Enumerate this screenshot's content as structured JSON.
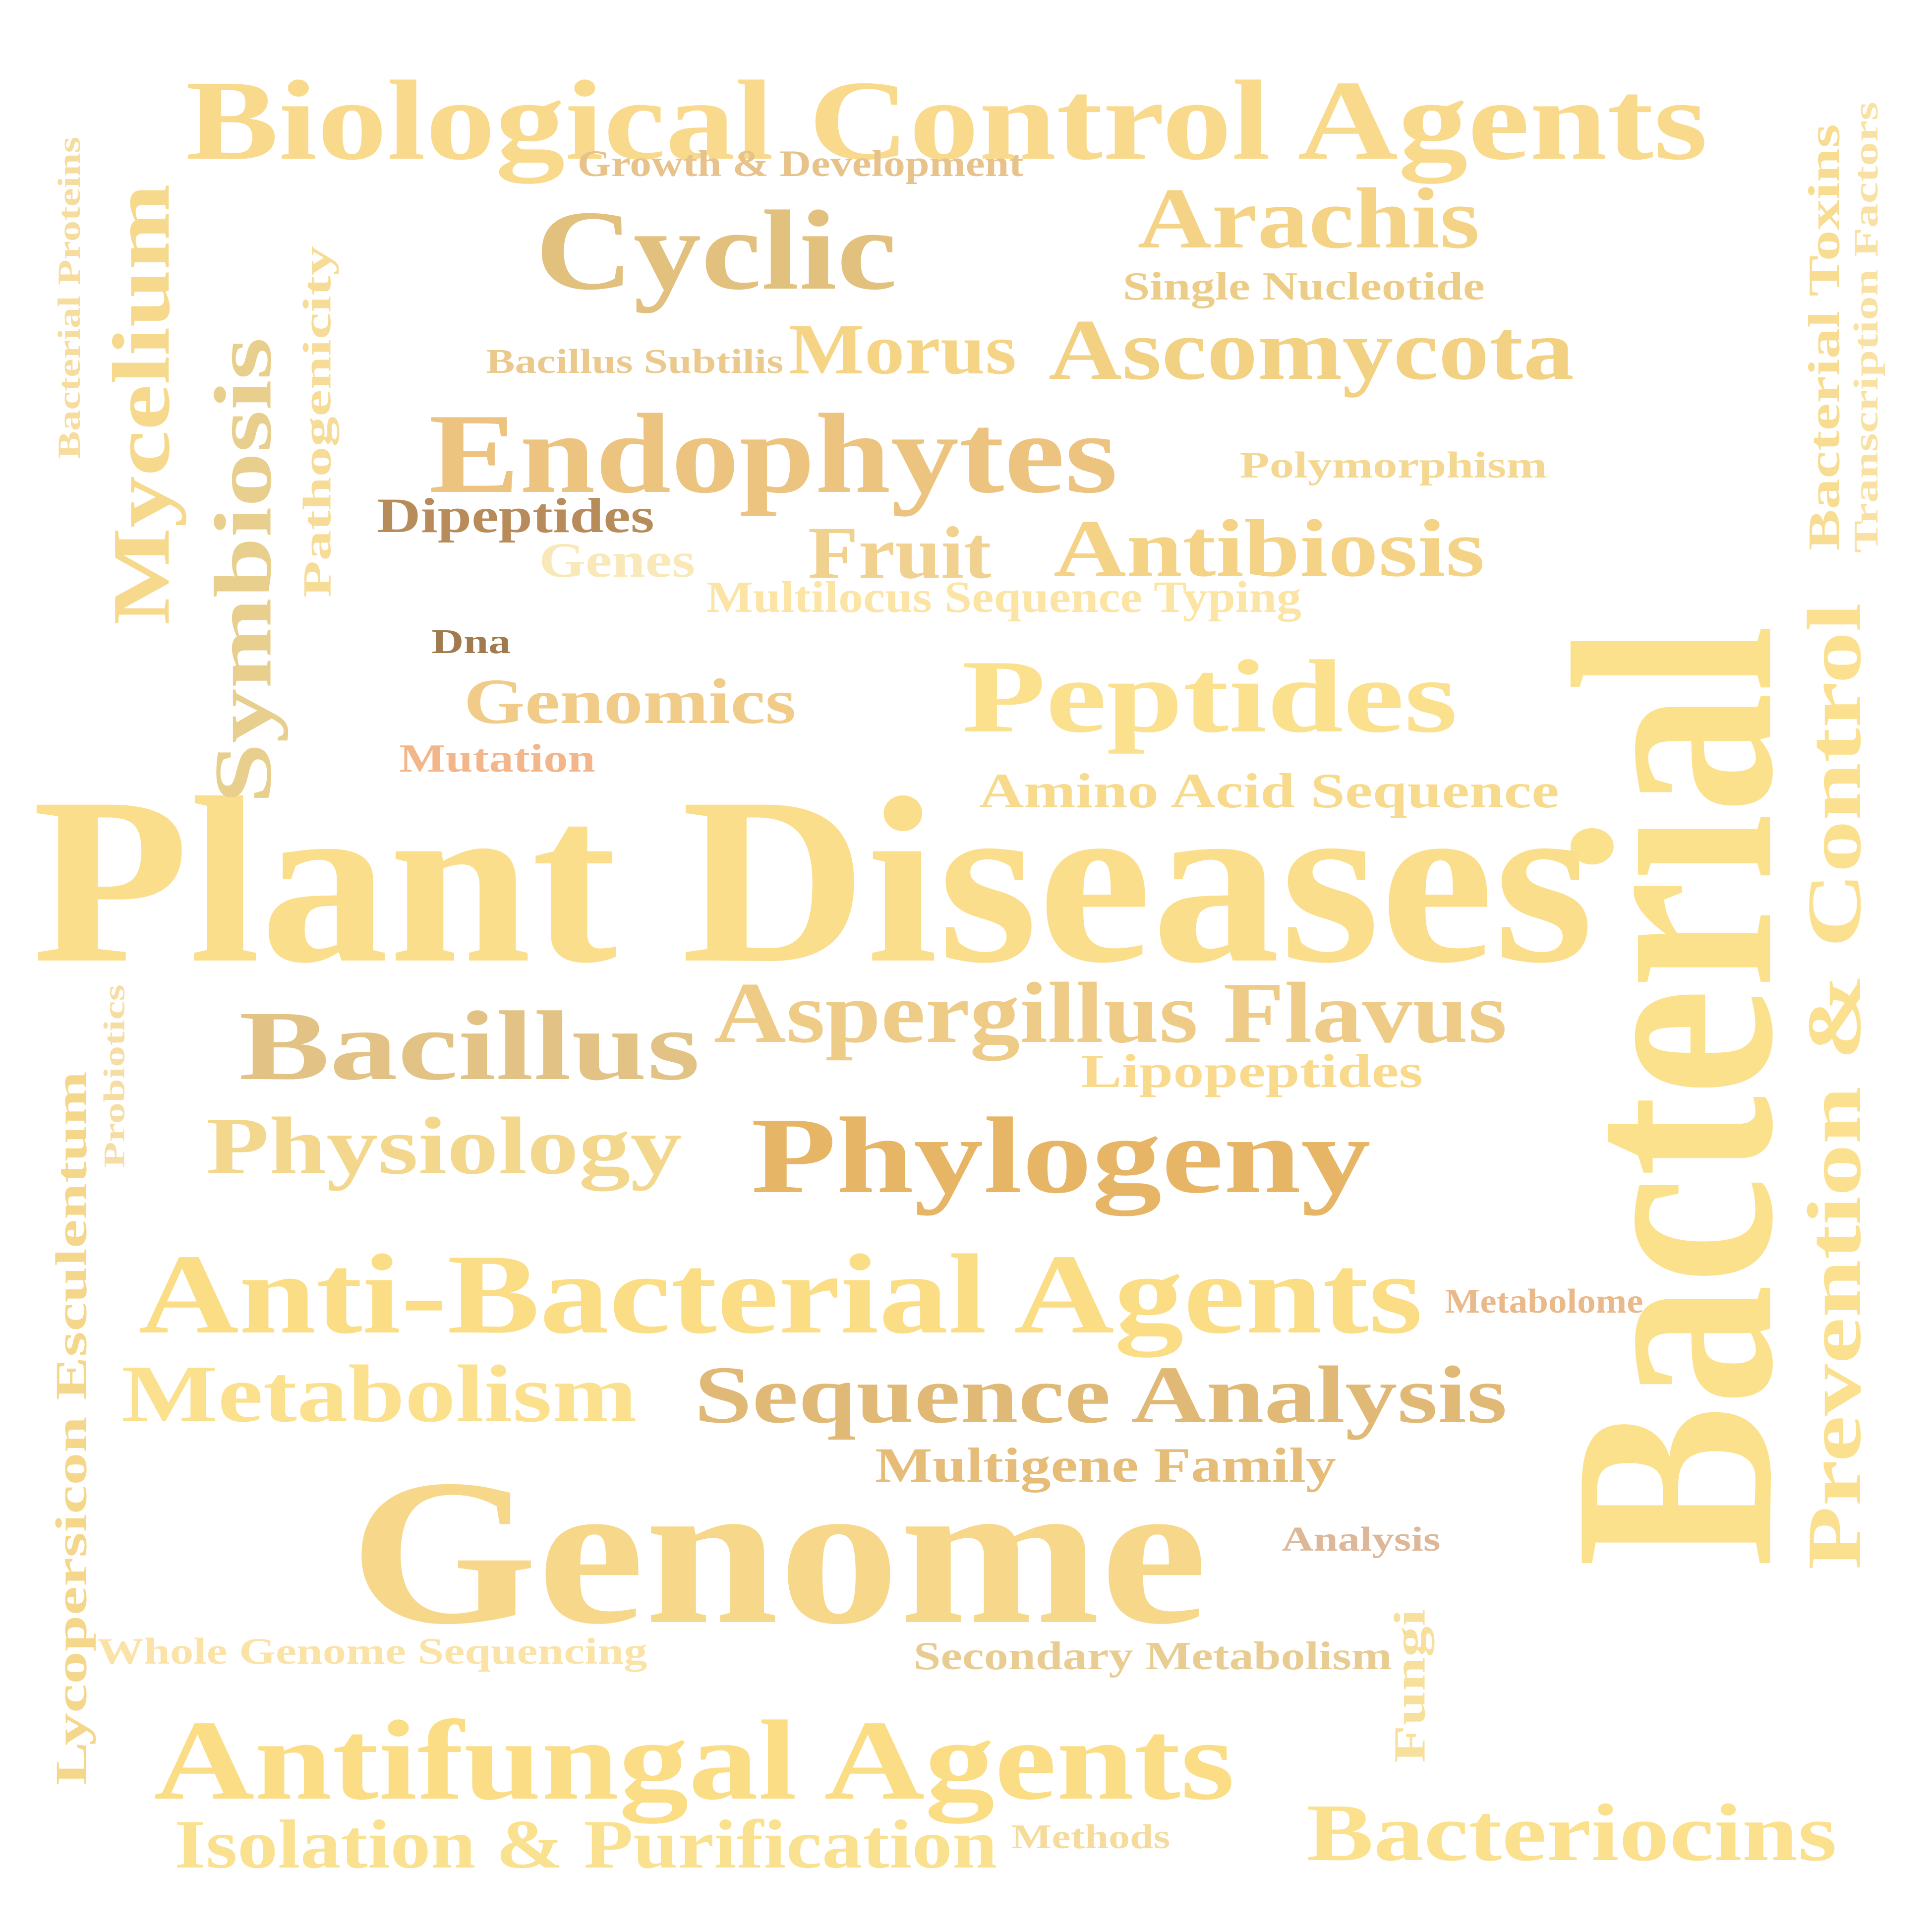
{
  "words": [
    {
      "text": "Bacterial",
      "color": "#fbe18b"
    },
    {
      "text": "Plant Diseases",
      "color": "#fbde8b"
    },
    {
      "text": "Genome",
      "color": "#f7d78a"
    },
    {
      "text": "Biological Control Agents",
      "color": "#f9da8c"
    },
    {
      "text": "Anti-Bacterial Agents",
      "color": "#fbdd86"
    },
    {
      "text": "Antifungal Agents",
      "color": "#fbdd86"
    },
    {
      "text": "Endophytes",
      "color": "#edc380"
    },
    {
      "text": "Phylogeny",
      "color": "#e6b566"
    },
    {
      "text": "Cyclic",
      "color": "#e2c07e"
    },
    {
      "text": "Peptides",
      "color": "#fbe08d"
    },
    {
      "text": "Bacillus",
      "color": "#e3c285"
    },
    {
      "text": "Aspergillus Flavus",
      "color": "#eecb86"
    },
    {
      "text": "Sequence Analysis",
      "color": "#e1b976"
    },
    {
      "text": "Arachis",
      "color": "#f5d386"
    },
    {
      "text": "Ascomycota",
      "color": "#f3d183"
    },
    {
      "text": "Antibiosis",
      "color": "#f4d286"
    },
    {
      "text": "Physiology",
      "color": "#f3d78d"
    },
    {
      "text": "Metabolism",
      "color": "#fbe08e"
    },
    {
      "text": "Bacteriocins",
      "color": "#fbe08d"
    },
    {
      "text": "Isolation & Purification",
      "color": "#fae18f"
    },
    {
      "text": "Mycelium",
      "color": "#f6d98d"
    },
    {
      "text": "Symbiosis",
      "color": "#e8cf8d"
    },
    {
      "text": "Prevention & Control",
      "color": "#fbe18f"
    },
    {
      "text": "Fruit",
      "color": "#f1d18f"
    },
    {
      "text": "Morus",
      "color": "#f6d486"
    },
    {
      "text": "Genomics",
      "color": "#f1cb88"
    },
    {
      "text": "Amino Acid Sequence",
      "color": "#f8da8d"
    },
    {
      "text": "Lipopeptides",
      "color": "#f9d98c"
    },
    {
      "text": "Multigene Family",
      "color": "#e6bd78"
    },
    {
      "text": "Dipeptides",
      "color": "#b88c5a"
    },
    {
      "text": "Genes",
      "color": "#f9e8b8"
    },
    {
      "text": "Growth & Development",
      "color": "#e7c28a"
    },
    {
      "text": "Single Nucleotide",
      "color": "#eccd88"
    },
    {
      "text": "Bacillus Subtilis",
      "color": "#ebc98d"
    },
    {
      "text": "Polymorphism",
      "color": "#f4d791"
    },
    {
      "text": "Multilocus Sequence Typing",
      "color": "#fbe4a4"
    },
    {
      "text": "Dna",
      "color": "#a17b4f"
    },
    {
      "text": "Mutation",
      "color": "#f3b68a"
    },
    {
      "text": "Metabolome",
      "color": "#eab98a"
    },
    {
      "text": "Analysis",
      "color": "#dcb798"
    },
    {
      "text": "Whole Genome Sequencing",
      "color": "#fbe3a7"
    },
    {
      "text": "Secondary Metabolism",
      "color": "#e9cc91"
    },
    {
      "text": "Methods",
      "color": "#f5dc9c"
    },
    {
      "text": "Fungi",
      "color": "#f7df9c"
    },
    {
      "text": "Bacterial Proteins",
      "color": "#f6dc9d"
    },
    {
      "text": "Pathogenicity",
      "color": "#f7dc97"
    },
    {
      "text": "Probiotics",
      "color": "#f5dda4"
    },
    {
      "text": "Lycopersicon Esculentum",
      "color": "#f5d78b"
    },
    {
      "text": "Bacterial Toxins",
      "color": "#f7dc92"
    },
    {
      "text": "Transcription Factors",
      "color": "#f8e1a3"
    }
  ]
}
